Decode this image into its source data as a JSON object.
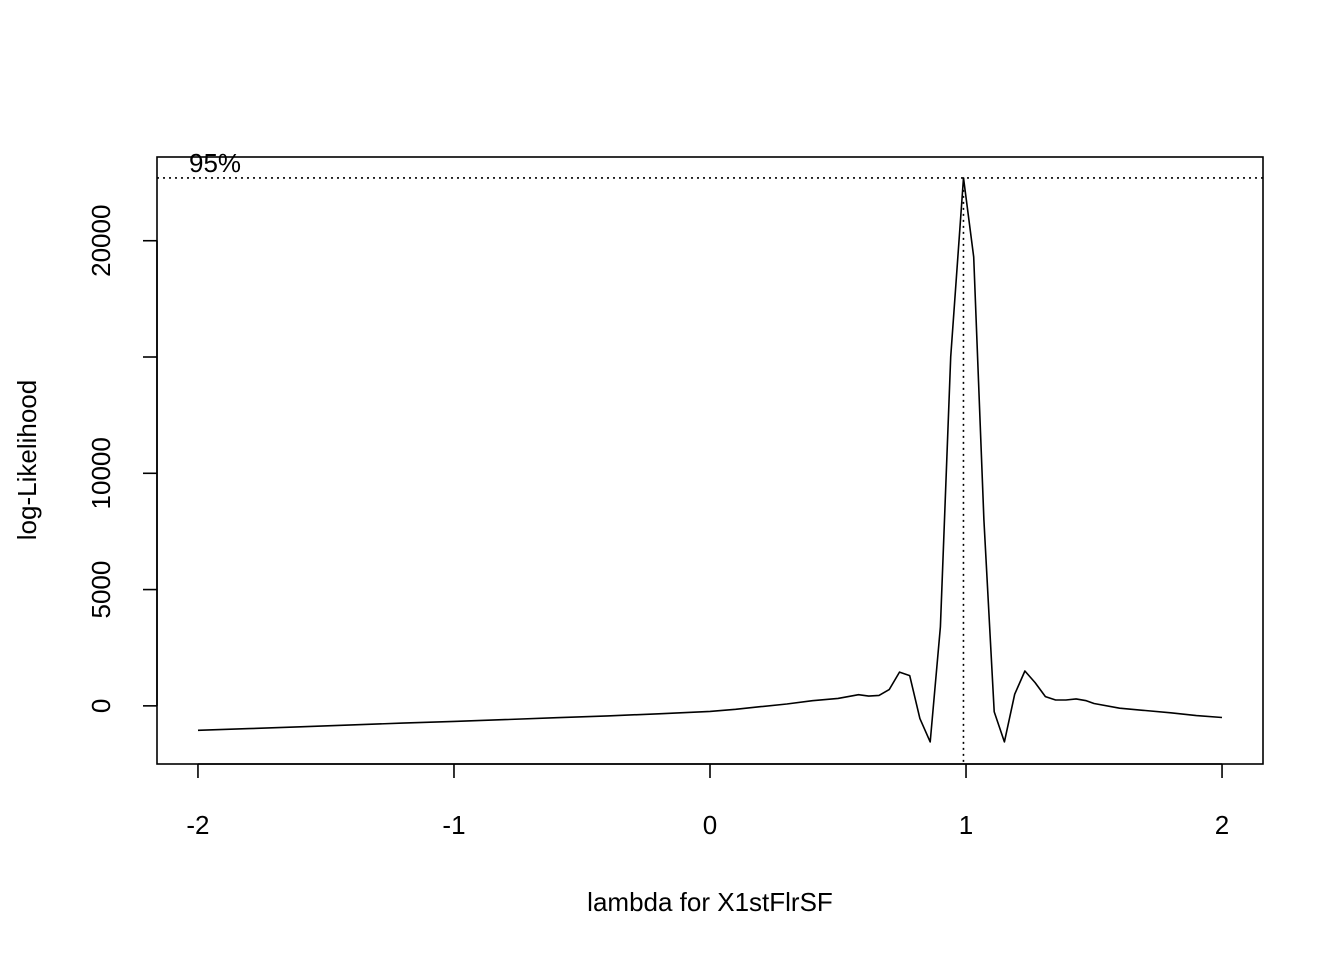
{
  "chart_data": {
    "type": "line",
    "title": "",
    "xlabel": "lambda for X1stFlrSF",
    "ylabel": "log-Likelihood",
    "xlim": [
      -2.16,
      2.16
    ],
    "ylim": [
      -2500,
      23600
    ],
    "x_ticks": [
      -2,
      -1,
      0,
      1,
      2
    ],
    "x_tick_labels": [
      "-2",
      "-1",
      "0",
      "1",
      "2"
    ],
    "y_ticks": [
      0,
      5000,
      10000,
      15000,
      20000
    ],
    "y_tick_labels": [
      "0",
      "5000",
      "10000",
      "",
      "20000"
    ],
    "grid": false,
    "ci_label": "95%",
    "ci_level_y": 22700,
    "lambda_hat": 0.99,
    "series": [
      {
        "x": [
          -2.0,
          -1.8,
          -1.6,
          -1.4,
          -1.2,
          -1.0,
          -0.8,
          -0.6,
          -0.4,
          -0.2,
          0.0,
          0.1,
          0.2,
          0.3,
          0.4,
          0.5,
          0.54,
          0.58,
          0.62,
          0.66,
          0.7,
          0.74,
          0.78,
          0.82,
          0.86,
          0.9,
          0.94,
          0.99,
          1.03,
          1.07,
          1.11,
          1.15,
          1.19,
          1.23,
          1.27,
          1.31,
          1.35,
          1.39,
          1.43,
          1.47,
          1.5,
          1.6,
          1.7,
          1.8,
          1.9,
          2.0
        ],
        "y": [
          -1050,
          -980,
          -900,
          -820,
          -740,
          -670,
          -590,
          -510,
          -430,
          -340,
          -240,
          -150,
          -30,
          80,
          220,
          320,
          400,
          480,
          420,
          450,
          700,
          1450,
          1300,
          -550,
          -1550,
          3400,
          15000,
          22700,
          19300,
          8000,
          -250,
          -1550,
          500,
          1500,
          1000,
          400,
          250,
          250,
          300,
          220,
          100,
          -100,
          -200,
          -300,
          -420,
          -500
        ]
      }
    ]
  }
}
